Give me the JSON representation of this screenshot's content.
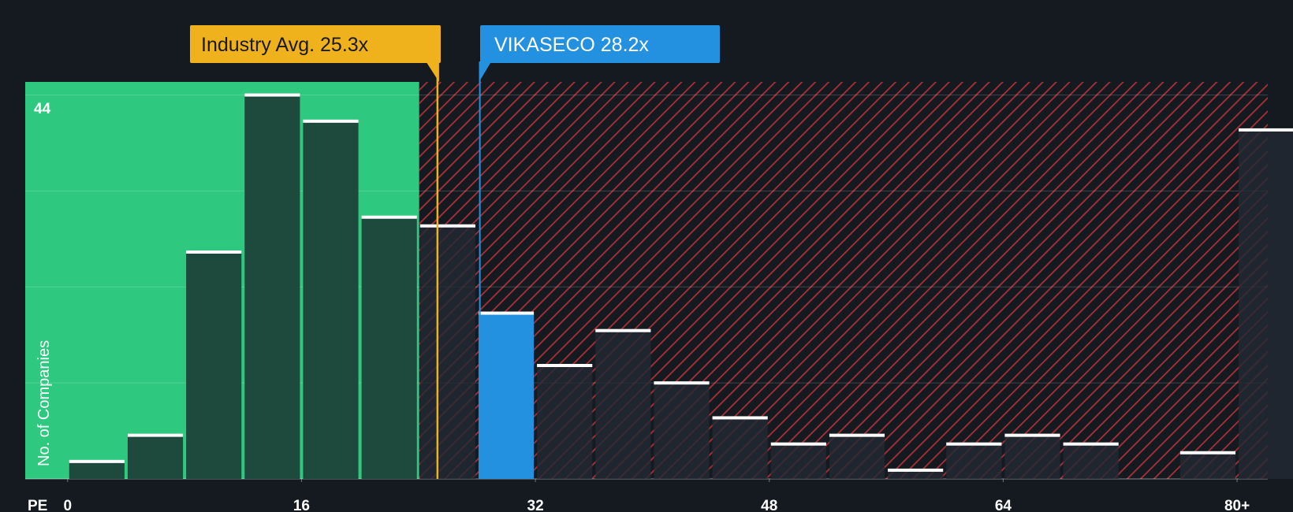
{
  "chart_data": {
    "type": "histogram",
    "title": "",
    "xlabel": "PE",
    "ylabel": "No. of Companies",
    "y_tick_label": "44",
    "y_tick_value": 44,
    "ylim": [
      0,
      45.5
    ],
    "xlim": [
      -2.9,
      82.1
    ],
    "x_ticks": [
      {
        "value": 0,
        "label": "0"
      },
      {
        "value": 16,
        "label": "16"
      },
      {
        "value": 32,
        "label": "32"
      },
      {
        "value": 48,
        "label": "48"
      },
      {
        "value": 64,
        "label": "64"
      },
      {
        "value": 80,
        "label": "80+"
      }
    ],
    "bin_width": 4,
    "bins": [
      {
        "start": 0,
        "count": 2
      },
      {
        "start": 4,
        "count": 5
      },
      {
        "start": 8,
        "count": 26
      },
      {
        "start": 12,
        "count": 44
      },
      {
        "start": 16,
        "count": 41
      },
      {
        "start": 20,
        "count": 30
      },
      {
        "start": 24,
        "count": 29
      },
      {
        "start": 28,
        "count": 19,
        "highlight": true
      },
      {
        "start": 32,
        "count": 13
      },
      {
        "start": 36,
        "count": 17
      },
      {
        "start": 40,
        "count": 11
      },
      {
        "start": 44,
        "count": 7
      },
      {
        "start": 48,
        "count": 4
      },
      {
        "start": 52,
        "count": 5
      },
      {
        "start": 56,
        "count": 1
      },
      {
        "start": 60,
        "count": 4
      },
      {
        "start": 64,
        "count": 5
      },
      {
        "start": 68,
        "count": 4
      },
      {
        "start": 72,
        "count": 0
      },
      {
        "start": 76,
        "count": 3
      },
      {
        "start": 80,
        "count": 40
      }
    ],
    "industry_avg": {
      "value": 25.3,
      "label": "Industry Avg. 25.3x"
    },
    "company": {
      "value": 28.2,
      "label": "VIKASECO 28.2x"
    },
    "colors": {
      "background": "#151a21",
      "fair_zone": "#2ec97e",
      "bar_in_fair": "#1e4a3e",
      "bar_out": "#232a33",
      "hatch": "#c8343c",
      "highlight": "#2390e0",
      "industry": "#f0b21c",
      "bar_cap": "#ffffff"
    }
  }
}
